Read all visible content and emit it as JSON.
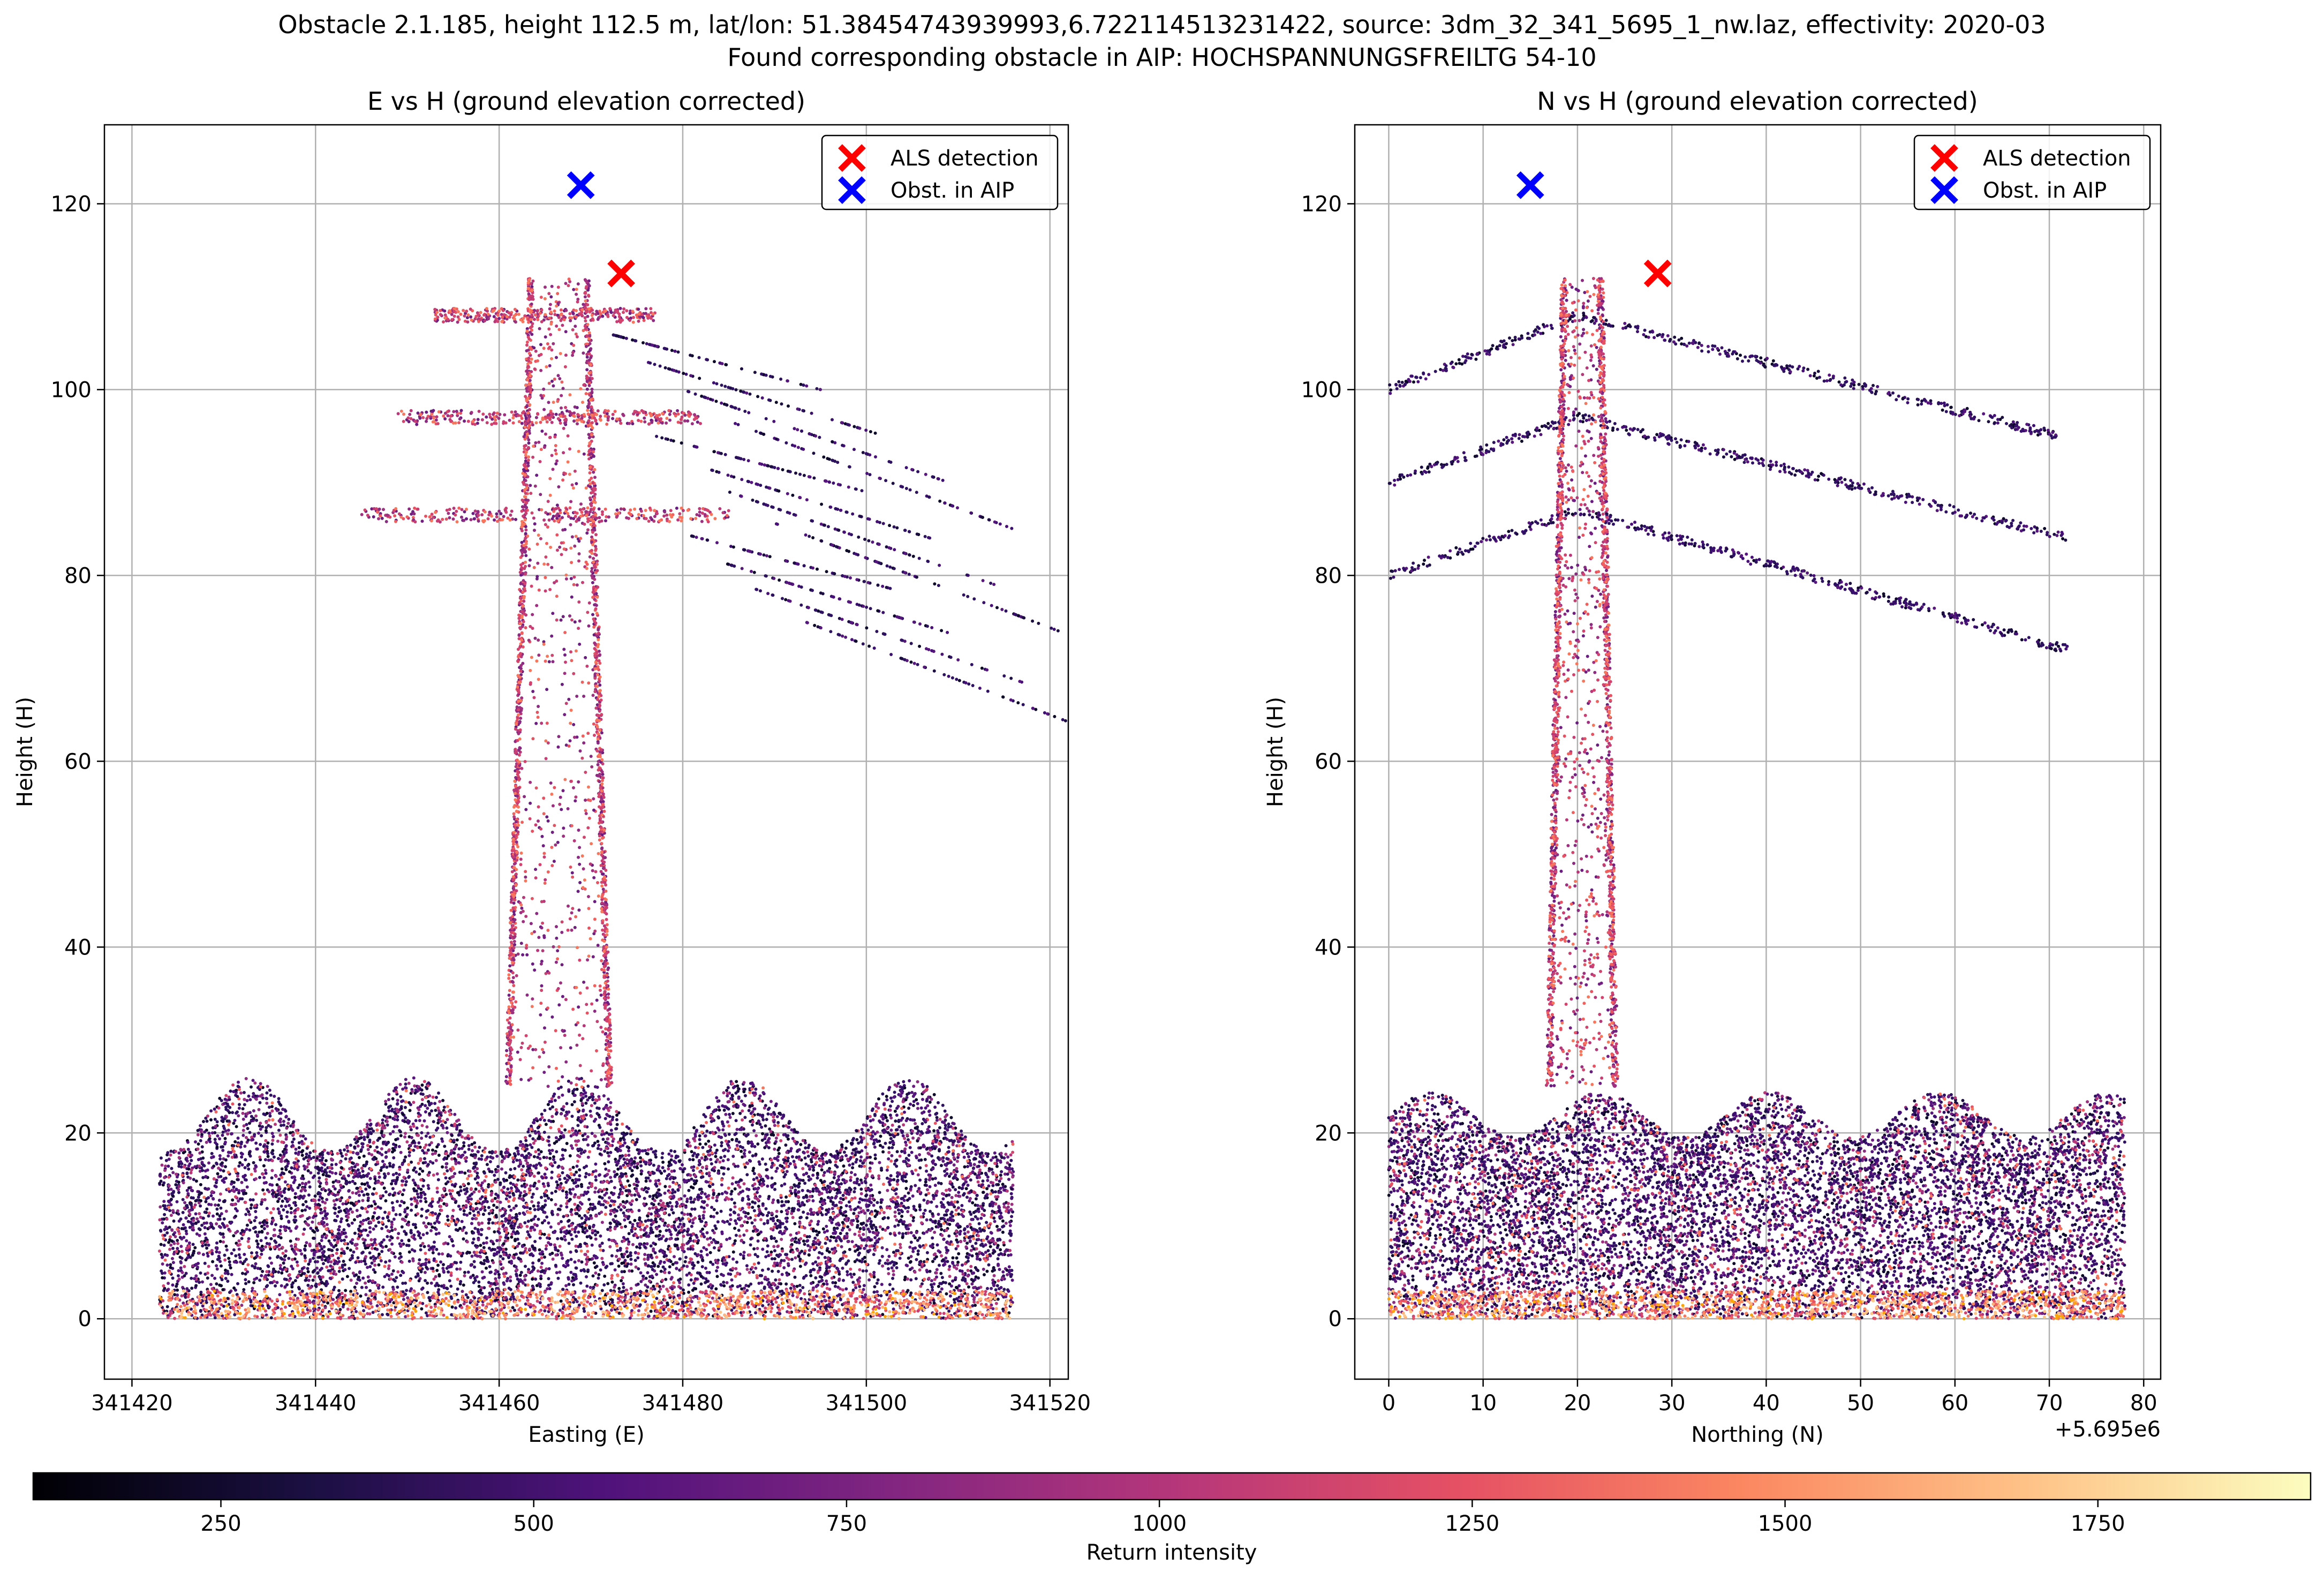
{
  "figure": {
    "suptitle_line1": "Obstacle 2.1.185, height 112.5 m, lat/lon: 51.38454743939993,6.722114513231422, source: 3dm_32_341_5695_1_nw.laz, effectivity: 2020-03",
    "suptitle_line2": "Found corresponding obstacle in AIP: HOCHSPANNUNGSFREILTG 54-10"
  },
  "colors": {
    "als_detection": "#ff0000",
    "obst_in_aip": "#0000ff",
    "grid": "#b0b0b0",
    "colormap": "magma"
  },
  "chart_data": [
    {
      "type": "scatter",
      "title": "E vs H (ground elevation corrected)",
      "xlabel": "Easting (E)",
      "ylabel": "Height (H)",
      "xlim": [
        341417,
        341522
      ],
      "ylim": [
        -6.5,
        128.5
      ],
      "xticks": [
        341420,
        341440,
        341460,
        341480,
        341500,
        341520
      ],
      "xtick_labels": [
        "341420",
        "341440",
        "341460",
        "341480",
        "341500",
        "341520"
      ],
      "yticks": [
        0,
        20,
        40,
        60,
        80,
        100,
        120
      ],
      "ytick_labels": [
        "0",
        "20",
        "40",
        "60",
        "80",
        "100",
        "120"
      ],
      "offset_text": "",
      "grid": true,
      "legend_position": "upper right",
      "legend": [
        {
          "label": "ALS detection",
          "color": "#ff0000",
          "marker": "x"
        },
        {
          "label": "Obst. in AIP",
          "color": "#0000ff",
          "marker": "x"
        }
      ],
      "markers": [
        {
          "name": "ALS detection",
          "x": 341473.3,
          "y": 112.5,
          "color": "#ff0000"
        },
        {
          "name": "Obst. in AIP",
          "x": 341468.9,
          "y": 122.0,
          "color": "#0000ff"
        }
      ],
      "point_cloud": {
        "description_view": "easting",
        "tower_x_range": [
          341461,
          341472
        ],
        "tower_top": 112,
        "vegetation_x_range": [
          341423,
          341516
        ],
        "vegetation_top": 25,
        "cross_arms": [
          {
            "x_from": 341453,
            "x_to": 341477,
            "height": 108
          },
          {
            "x_from": 341449,
            "x_to": 341482,
            "height": 97
          },
          {
            "x_from": 341445,
            "x_to": 341485,
            "height": 86.5
          }
        ]
      }
    },
    {
      "type": "scatter",
      "title": "N vs H (ground elevation corrected)",
      "xlabel": "Northing (N)",
      "ylabel": "Height (H)",
      "xlim": [
        -3.6,
        81.8
      ],
      "ylim": [
        -6.5,
        128.5
      ],
      "xticks": [
        0,
        10,
        20,
        30,
        40,
        50,
        60,
        70,
        80
      ],
      "xtick_labels": [
        "0",
        "10",
        "20",
        "30",
        "40",
        "50",
        "60",
        "70",
        "80"
      ],
      "yticks": [
        0,
        20,
        40,
        60,
        80,
        100,
        120
      ],
      "ytick_labels": [
        "0",
        "20",
        "40",
        "60",
        "80",
        "100",
        "120"
      ],
      "offset_text": "+5.695e6",
      "grid": true,
      "legend_position": "upper right",
      "legend": [
        {
          "label": "ALS detection",
          "color": "#ff0000",
          "marker": "x"
        },
        {
          "label": "Obst. in AIP",
          "color": "#0000ff",
          "marker": "x"
        }
      ],
      "markers": [
        {
          "name": "ALS detection",
          "x": 28.5,
          "y": 112.5,
          "color": "#ff0000"
        },
        {
          "name": "Obst. in AIP",
          "x": 15.0,
          "y": 122.0,
          "color": "#0000ff"
        }
      ],
      "point_cloud": {
        "description_view": "northing",
        "tower_x_range": [
          17,
          24
        ],
        "tower_top": 112,
        "vegetation_x_range": [
          0,
          78
        ],
        "vegetation_top": 25,
        "wires": [
          {
            "left": [
              0,
              100
            ],
            "tower": [
              20,
              108
            ],
            "right": [
              71,
              95
            ]
          },
          {
            "left": [
              0,
              90
            ],
            "tower": [
              20,
              97
            ],
            "right": [
              72,
              84
            ]
          },
          {
            "left": [
              0,
              80
            ],
            "tower": [
              20,
              87
            ],
            "right": [
              72,
              72
            ]
          }
        ]
      }
    }
  ],
  "colorbar": {
    "label": "Return intensity",
    "range": [
      100,
      1920
    ],
    "ticks": [
      250,
      500,
      750,
      1000,
      1250,
      1500,
      1750
    ],
    "tick_labels": [
      "250",
      "500",
      "750",
      "1000",
      "1250",
      "1500",
      "1750"
    ]
  }
}
